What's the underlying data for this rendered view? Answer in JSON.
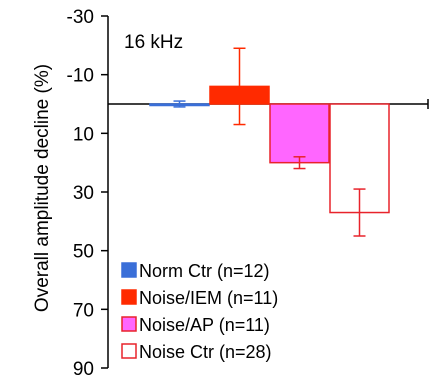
{
  "chart_data": {
    "type": "bar",
    "annotation": "16 kHz",
    "ylabel": "Overall amplitude decline (%)",
    "ylim": [
      90,
      -30
    ],
    "yticks": [
      -30,
      -10,
      10,
      30,
      50,
      70,
      90
    ],
    "y_inverted": true,
    "baseline": 0,
    "grid": false,
    "legend_placement": "bottom-left",
    "series": [
      {
        "name": "Norm Ctr (n=12)",
        "value": 0,
        "error": 1,
        "color": "#3a6fd8",
        "fill": "solid"
      },
      {
        "name": "Noise/IEM (n=11)",
        "value": -6,
        "error": 13,
        "color": "#ff2a00",
        "fill": "solid"
      },
      {
        "name": "Noise/AP (n=11)",
        "value": 20,
        "error": 2,
        "color": "#ff66ff",
        "edge": "#e8232b",
        "fill": "solid"
      },
      {
        "name": "Noise Ctr (n=28)",
        "value": 37,
        "error": 8,
        "color": "#ffffff",
        "edge": "#e8232b",
        "fill": "hollow"
      }
    ]
  }
}
